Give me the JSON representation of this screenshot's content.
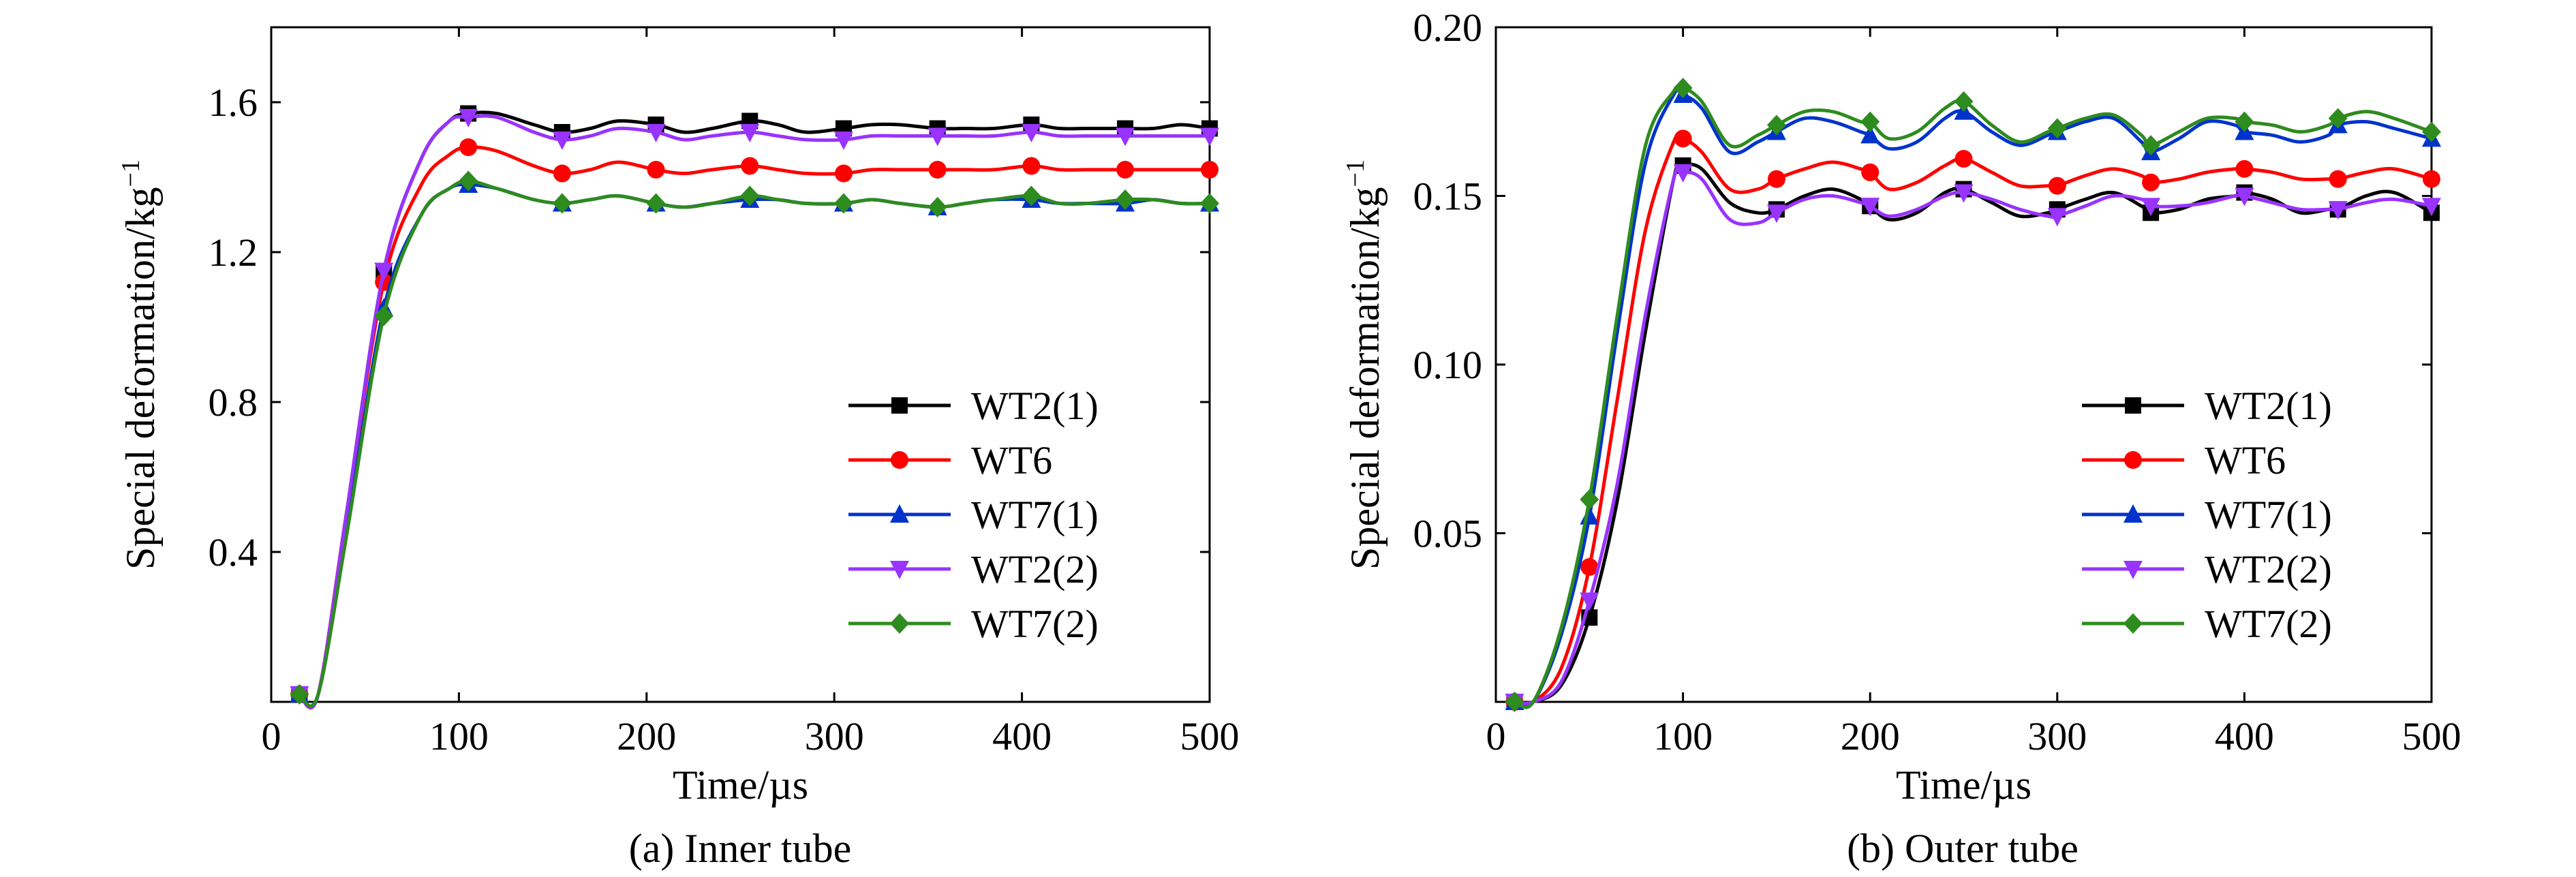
{
  "chart_data": [
    {
      "type": "line",
      "caption": "(a) Inner tube",
      "xlabel": "Time/µs",
      "ylabel_main": "Special deformation/kg",
      "ylabel_sup": "−1",
      "xlim": [
        0,
        500
      ],
      "ylim": [
        0,
        1.8
      ],
      "xticks": [
        0,
        100,
        200,
        300,
        400,
        500
      ],
      "xtick_labels": [
        "0",
        "100",
        "200",
        "300",
        "400",
        "500"
      ],
      "yticks": [
        0.4,
        0.8,
        1.2,
        1.6
      ],
      "ytick_labels": [
        "0.4",
        "0.8",
        "1.2",
        "1.6"
      ],
      "grid": false,
      "legend_position": "lower-right",
      "series": [
        {
          "name": "WT2(1)",
          "color": "#000000",
          "marker": "square",
          "x": [
            15,
            25,
            40,
            60,
            80,
            95,
            105,
            120,
            140,
            155,
            170,
            185,
            205,
            220,
            235,
            255,
            270,
            285,
            305,
            320,
            335,
            355,
            370,
            385,
            405,
            420,
            435,
            455,
            470,
            485,
            500
          ],
          "y": [
            0.02,
            0.02,
            0.5,
            1.15,
            1.45,
            1.55,
            1.57,
            1.57,
            1.54,
            1.52,
            1.53,
            1.55,
            1.54,
            1.52,
            1.53,
            1.55,
            1.54,
            1.52,
            1.53,
            1.54,
            1.54,
            1.53,
            1.53,
            1.53,
            1.54,
            1.53,
            1.53,
            1.53,
            1.53,
            1.54,
            1.53
          ]
        },
        {
          "name": "WT6",
          "color": "#ff0000",
          "marker": "circle",
          "x": [
            15,
            25,
            40,
            60,
            80,
            95,
            105,
            120,
            140,
            155,
            170,
            185,
            205,
            220,
            235,
            255,
            270,
            285,
            305,
            320,
            335,
            355,
            370,
            385,
            405,
            420,
            435,
            455,
            470,
            485,
            500
          ],
          "y": [
            0.02,
            0.02,
            0.5,
            1.12,
            1.38,
            1.46,
            1.48,
            1.47,
            1.43,
            1.41,
            1.42,
            1.44,
            1.42,
            1.41,
            1.42,
            1.43,
            1.42,
            1.41,
            1.41,
            1.42,
            1.42,
            1.42,
            1.42,
            1.42,
            1.43,
            1.42,
            1.42,
            1.42,
            1.42,
            1.42,
            1.42
          ]
        },
        {
          "name": "WT7(1)",
          "color": "#0033cc",
          "marker": "triangle-up",
          "x": [
            15,
            25,
            40,
            60,
            80,
            95,
            105,
            120,
            140,
            155,
            170,
            185,
            205,
            220,
            235,
            255,
            270,
            285,
            305,
            320,
            335,
            355,
            370,
            385,
            405,
            420,
            435,
            455,
            470,
            485,
            500
          ],
          "y": [
            0.02,
            0.02,
            0.45,
            1.05,
            1.3,
            1.37,
            1.38,
            1.37,
            1.34,
            1.33,
            1.34,
            1.35,
            1.33,
            1.32,
            1.33,
            1.34,
            1.34,
            1.33,
            1.33,
            1.34,
            1.33,
            1.32,
            1.33,
            1.34,
            1.34,
            1.33,
            1.33,
            1.33,
            1.34,
            1.33,
            1.33
          ]
        },
        {
          "name": "WT2(2)",
          "color": "#9933ff",
          "marker": "triangle-down",
          "x": [
            15,
            25,
            40,
            60,
            80,
            95,
            105,
            120,
            140,
            155,
            170,
            185,
            205,
            220,
            235,
            255,
            270,
            285,
            305,
            320,
            335,
            355,
            370,
            385,
            405,
            420,
            435,
            455,
            470,
            485,
            500
          ],
          "y": [
            0.02,
            0.02,
            0.5,
            1.15,
            1.45,
            1.55,
            1.56,
            1.56,
            1.52,
            1.5,
            1.51,
            1.53,
            1.52,
            1.5,
            1.51,
            1.52,
            1.51,
            1.5,
            1.5,
            1.51,
            1.51,
            1.51,
            1.51,
            1.51,
            1.52,
            1.51,
            1.51,
            1.51,
            1.51,
            1.51,
            1.51
          ]
        },
        {
          "name": "WT7(2)",
          "color": "#2e8b1e",
          "marker": "diamond",
          "x": [
            15,
            25,
            40,
            60,
            80,
            95,
            105,
            120,
            140,
            155,
            170,
            185,
            205,
            220,
            235,
            255,
            270,
            285,
            305,
            320,
            335,
            355,
            370,
            385,
            405,
            420,
            435,
            455,
            470,
            485,
            500
          ],
          "y": [
            0.02,
            0.02,
            0.44,
            1.03,
            1.3,
            1.37,
            1.39,
            1.37,
            1.34,
            1.33,
            1.34,
            1.35,
            1.33,
            1.32,
            1.33,
            1.35,
            1.34,
            1.33,
            1.33,
            1.34,
            1.33,
            1.32,
            1.33,
            1.34,
            1.35,
            1.33,
            1.33,
            1.34,
            1.34,
            1.33,
            1.33
          ]
        }
      ]
    },
    {
      "type": "line",
      "caption": "(b) Outer tube",
      "xlabel": "Time/µs",
      "ylabel_main": "Special deformation/kg",
      "ylabel_sup": "−1",
      "xlim": [
        0,
        500
      ],
      "ylim": [
        0,
        0.2
      ],
      "xticks": [
        0,
        100,
        200,
        300,
        400,
        500
      ],
      "xtick_labels": [
        "0",
        "100",
        "200",
        "300",
        "400",
        "500"
      ],
      "yticks": [
        0.05,
        0.1,
        0.15,
        0.2
      ],
      "ytick_labels": [
        "0.05",
        "0.10",
        "0.15",
        "0.20"
      ],
      "grid": false,
      "legend_position": "lower-right",
      "series": [
        {
          "name": "WT2(1)",
          "color": "#000000",
          "marker": "square",
          "x": [
            10,
            20,
            35,
            50,
            65,
            80,
            95,
            100,
            110,
            125,
            140,
            150,
            165,
            180,
            195,
            200,
            210,
            225,
            240,
            250,
            265,
            280,
            295,
            300,
            315,
            330,
            345,
            350,
            365,
            380,
            395,
            400,
            415,
            430,
            445,
            450,
            465,
            480,
            500
          ],
          "y": [
            0,
            0,
            0.005,
            0.025,
            0.06,
            0.11,
            0.155,
            0.159,
            0.158,
            0.148,
            0.145,
            0.146,
            0.15,
            0.152,
            0.149,
            0.147,
            0.143,
            0.145,
            0.151,
            0.152,
            0.148,
            0.144,
            0.145,
            0.146,
            0.149,
            0.151,
            0.147,
            0.145,
            0.146,
            0.149,
            0.15,
            0.151,
            0.149,
            0.145,
            0.146,
            0.146,
            0.15,
            0.151,
            0.145
          ]
        },
        {
          "name": "WT6",
          "color": "#ff0000",
          "marker": "circle",
          "x": [
            10,
            20,
            35,
            50,
            65,
            80,
            95,
            100,
            110,
            125,
            140,
            150,
            165,
            180,
            195,
            200,
            210,
            225,
            240,
            250,
            265,
            280,
            295,
            300,
            315,
            330,
            345,
            350,
            365,
            380,
            395,
            400,
            415,
            430,
            445,
            450,
            465,
            480,
            500
          ],
          "y": [
            0,
            0,
            0.01,
            0.04,
            0.09,
            0.14,
            0.166,
            0.167,
            0.163,
            0.152,
            0.152,
            0.155,
            0.158,
            0.16,
            0.158,
            0.157,
            0.152,
            0.154,
            0.159,
            0.161,
            0.157,
            0.153,
            0.153,
            0.153,
            0.156,
            0.158,
            0.156,
            0.154,
            0.155,
            0.157,
            0.158,
            0.158,
            0.157,
            0.155,
            0.155,
            0.155,
            0.157,
            0.158,
            0.155
          ]
        },
        {
          "name": "WT7(1)",
          "color": "#0033cc",
          "marker": "triangle-up",
          "x": [
            10,
            20,
            35,
            50,
            65,
            80,
            95,
            100,
            110,
            125,
            140,
            150,
            165,
            180,
            195,
            200,
            210,
            225,
            240,
            250,
            265,
            280,
            295,
            300,
            315,
            330,
            345,
            350,
            365,
            380,
            395,
            400,
            415,
            430,
            445,
            450,
            465,
            480,
            500
          ],
          "y": [
            0,
            0,
            0.02,
            0.055,
            0.11,
            0.16,
            0.18,
            0.18,
            0.176,
            0.163,
            0.166,
            0.169,
            0.173,
            0.172,
            0.169,
            0.168,
            0.164,
            0.166,
            0.173,
            0.175,
            0.169,
            0.165,
            0.168,
            0.169,
            0.172,
            0.173,
            0.166,
            0.163,
            0.167,
            0.172,
            0.171,
            0.169,
            0.168,
            0.166,
            0.168,
            0.171,
            0.172,
            0.17,
            0.167
          ]
        },
        {
          "name": "WT2(2)",
          "color": "#9933ff",
          "marker": "triangle-down",
          "x": [
            10,
            20,
            35,
            50,
            65,
            80,
            95,
            100,
            110,
            125,
            140,
            150,
            165,
            180,
            195,
            200,
            210,
            225,
            240,
            250,
            265,
            280,
            295,
            300,
            315,
            330,
            345,
            350,
            365,
            380,
            395,
            400,
            415,
            430,
            445,
            450,
            465,
            480,
            500
          ],
          "y": [
            0,
            0,
            0.006,
            0.03,
            0.065,
            0.115,
            0.155,
            0.157,
            0.155,
            0.143,
            0.142,
            0.145,
            0.149,
            0.15,
            0.148,
            0.147,
            0.144,
            0.146,
            0.15,
            0.151,
            0.149,
            0.146,
            0.144,
            0.144,
            0.147,
            0.15,
            0.149,
            0.147,
            0.147,
            0.148,
            0.15,
            0.15,
            0.148,
            0.146,
            0.146,
            0.146,
            0.148,
            0.149,
            0.147
          ]
        },
        {
          "name": "WT7(2)",
          "color": "#2e8b1e",
          "marker": "diamond",
          "x": [
            10,
            20,
            35,
            50,
            65,
            80,
            95,
            100,
            110,
            125,
            140,
            150,
            165,
            180,
            195,
            200,
            210,
            225,
            240,
            250,
            265,
            280,
            295,
            300,
            315,
            330,
            345,
            350,
            365,
            380,
            395,
            400,
            415,
            430,
            445,
            450,
            465,
            480,
            500
          ],
          "y": [
            0,
            0,
            0.022,
            0.06,
            0.115,
            0.165,
            0.181,
            0.182,
            0.178,
            0.165,
            0.168,
            0.171,
            0.175,
            0.175,
            0.172,
            0.172,
            0.167,
            0.169,
            0.176,
            0.178,
            0.171,
            0.166,
            0.169,
            0.17,
            0.173,
            0.174,
            0.168,
            0.165,
            0.169,
            0.173,
            0.173,
            0.172,
            0.171,
            0.169,
            0.171,
            0.173,
            0.175,
            0.173,
            0.169
          ]
        }
      ]
    }
  ]
}
